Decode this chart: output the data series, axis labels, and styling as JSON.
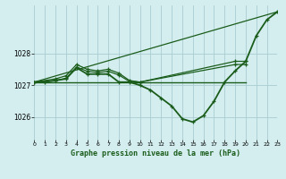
{
  "background_color": "#d4eef0",
  "grid_color": "#aaccd0",
  "line_color": "#1a5c1a",
  "title": "Graphe pression niveau de la mer (hPa)",
  "xlim": [
    0,
    23
  ],
  "ylim": [
    1025.3,
    1029.5
  ],
  "yticks": [
    1026,
    1027,
    1028
  ],
  "xticks": [
    0,
    1,
    2,
    3,
    4,
    5,
    6,
    7,
    8,
    9,
    10,
    11,
    12,
    13,
    14,
    15,
    16,
    17,
    18,
    19,
    20,
    21,
    22,
    23
  ],
  "series": [
    {
      "x": [
        0,
        1,
        2,
        3,
        4,
        5,
        6,
        7,
        8,
        9,
        10,
        11,
        12,
        13,
        14,
        15,
        16,
        17,
        18,
        19,
        20,
        21,
        22,
        23
      ],
      "y": [
        1027.1,
        1027.1,
        1027.15,
        1027.2,
        1027.55,
        1027.35,
        1027.35,
        1027.35,
        1027.1,
        1027.1,
        1027.0,
        1026.85,
        1026.6,
        1026.35,
        1025.95,
        1025.85,
        1026.05,
        1026.5,
        1027.1,
        1027.45,
        1027.75,
        1028.55,
        1029.05,
        1029.3
      ],
      "has_markers": true,
      "linewidth": 1.3
    },
    {
      "x": [
        0,
        20
      ],
      "y": [
        1027.1,
        1027.1
      ],
      "has_markers": false,
      "linewidth": 1.0
    },
    {
      "x": [
        0,
        23
      ],
      "y": [
        1027.1,
        1029.3
      ],
      "has_markers": false,
      "linewidth": 0.9
    },
    {
      "x": [
        0,
        2,
        3,
        4,
        5,
        6,
        7,
        8,
        9,
        10,
        19,
        20
      ],
      "y": [
        1027.1,
        1027.2,
        1027.3,
        1027.65,
        1027.5,
        1027.45,
        1027.5,
        1027.38,
        1027.15,
        1027.1,
        1027.75,
        1027.75
      ],
      "has_markers": true,
      "linewidth": 0.9
    },
    {
      "x": [
        0,
        2,
        3,
        4,
        5,
        6,
        7,
        8,
        9,
        10,
        19,
        20
      ],
      "y": [
        1027.1,
        1027.15,
        1027.22,
        1027.57,
        1027.44,
        1027.4,
        1027.44,
        1027.32,
        1027.12,
        1027.1,
        1027.65,
        1027.65
      ],
      "has_markers": true,
      "linewidth": 0.9
    }
  ]
}
